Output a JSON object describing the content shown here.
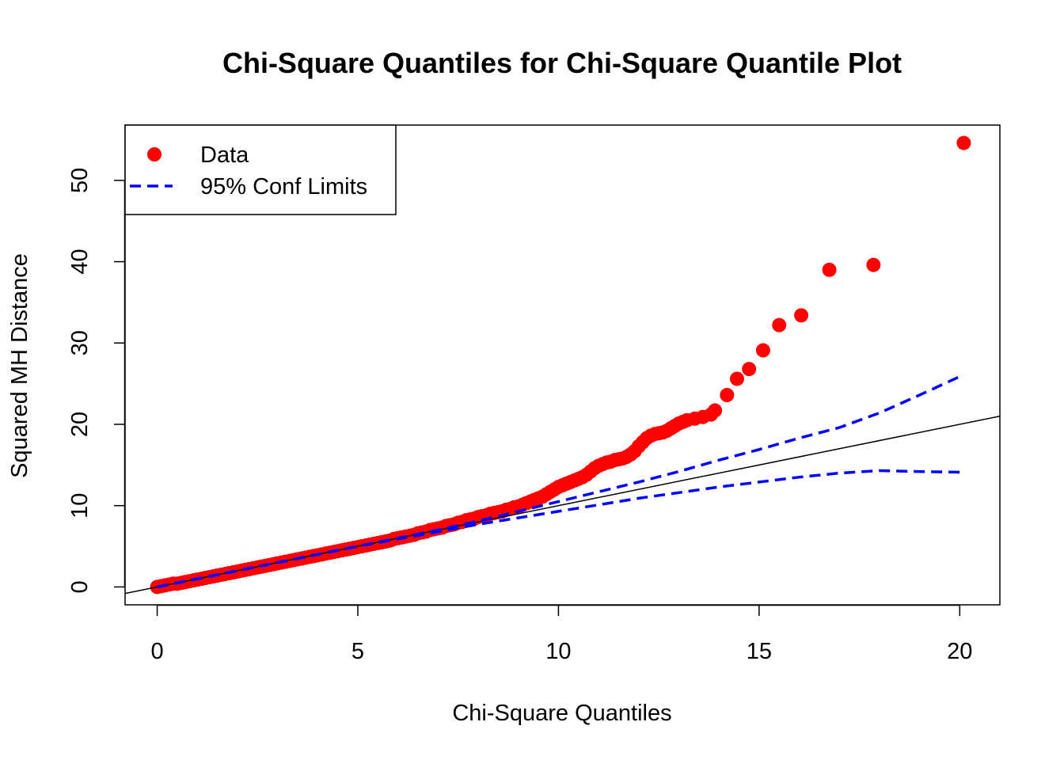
{
  "chart_data": {
    "type": "scatter",
    "title": "Chi-Square Quantiles for Chi-Square Quantile Plot",
    "xlabel": "Chi-Square Quantiles",
    "ylabel": "Squared MH Distance",
    "xlim": [
      -0.8,
      21
    ],
    "ylim": [
      -2.2,
      56.8
    ],
    "xticks": [
      0,
      5,
      10,
      15,
      20
    ],
    "yticks": [
      0,
      10,
      20,
      30,
      40,
      50
    ],
    "grid": false,
    "legend_position": "top-left",
    "legend": [
      {
        "label": "Data",
        "symbol": "point",
        "color": "#ff0000"
      },
      {
        "label": "95% Conf Limits",
        "symbol": "dashed-line",
        "color": "#0000ff"
      }
    ],
    "reference_line": {
      "slope": 1,
      "intercept": 0,
      "color": "#000000"
    },
    "series": [
      {
        "name": "Data",
        "kind": "points",
        "color": "#ff0000",
        "points": [
          [
            0.0,
            0.0
          ],
          [
            0.1,
            0.1
          ],
          [
            0.2,
            0.2
          ],
          [
            0.3,
            0.3
          ],
          [
            0.4,
            0.4
          ],
          [
            0.5,
            0.4
          ],
          [
            0.6,
            0.5
          ],
          [
            0.7,
            0.6
          ],
          [
            0.8,
            0.7
          ],
          [
            0.9,
            0.8
          ],
          [
            1.0,
            0.9
          ],
          [
            1.1,
            1.0
          ],
          [
            1.2,
            1.1
          ],
          [
            1.3,
            1.2
          ],
          [
            1.4,
            1.3
          ],
          [
            1.5,
            1.4
          ],
          [
            1.6,
            1.5
          ],
          [
            1.7,
            1.6
          ],
          [
            1.8,
            1.7
          ],
          [
            1.9,
            1.8
          ],
          [
            2.0,
            1.9
          ],
          [
            2.1,
            2.0
          ],
          [
            2.2,
            2.1
          ],
          [
            2.3,
            2.2
          ],
          [
            2.4,
            2.3
          ],
          [
            2.5,
            2.4
          ],
          [
            2.6,
            2.5
          ],
          [
            2.7,
            2.6
          ],
          [
            2.8,
            2.7
          ],
          [
            2.9,
            2.8
          ],
          [
            3.0,
            2.9
          ],
          [
            3.1,
            3.0
          ],
          [
            3.2,
            3.1
          ],
          [
            3.3,
            3.2
          ],
          [
            3.4,
            3.3
          ],
          [
            3.5,
            3.4
          ],
          [
            3.6,
            3.5
          ],
          [
            3.7,
            3.6
          ],
          [
            3.8,
            3.7
          ],
          [
            3.9,
            3.8
          ],
          [
            4.0,
            3.9
          ],
          [
            4.1,
            4.0
          ],
          [
            4.2,
            4.1
          ],
          [
            4.3,
            4.2
          ],
          [
            4.4,
            4.3
          ],
          [
            4.5,
            4.4
          ],
          [
            4.6,
            4.5
          ],
          [
            4.7,
            4.6
          ],
          [
            4.8,
            4.7
          ],
          [
            4.9,
            4.8
          ],
          [
            5.0,
            4.9
          ],
          [
            5.1,
            5.0
          ],
          [
            5.2,
            5.1
          ],
          [
            5.3,
            5.2
          ],
          [
            5.4,
            5.3
          ],
          [
            5.5,
            5.4
          ],
          [
            5.6,
            5.5
          ],
          [
            5.7,
            5.6
          ],
          [
            5.8,
            5.7
          ],
          [
            5.9,
            5.9
          ],
          [
            6.0,
            6.0
          ],
          [
            6.1,
            6.1
          ],
          [
            6.2,
            6.2
          ],
          [
            6.3,
            6.3
          ],
          [
            6.4,
            6.4
          ],
          [
            6.5,
            6.6
          ],
          [
            6.6,
            6.7
          ],
          [
            6.7,
            6.8
          ],
          [
            6.8,
            7.0
          ],
          [
            6.9,
            7.1
          ],
          [
            7.0,
            7.2
          ],
          [
            7.1,
            7.3
          ],
          [
            7.2,
            7.5
          ],
          [
            7.3,
            7.6
          ],
          [
            7.4,
            7.7
          ],
          [
            7.5,
            7.9
          ],
          [
            7.6,
            8.0
          ],
          [
            7.7,
            8.2
          ],
          [
            7.8,
            8.3
          ],
          [
            7.9,
            8.4
          ],
          [
            8.0,
            8.6
          ],
          [
            8.1,
            8.7
          ],
          [
            8.2,
            8.8
          ],
          [
            8.3,
            9.0
          ],
          [
            8.4,
            9.1
          ],
          [
            8.5,
            9.2
          ],
          [
            8.6,
            9.3
          ],
          [
            8.7,
            9.5
          ],
          [
            8.8,
            9.6
          ],
          [
            8.9,
            9.8
          ],
          [
            9.0,
            9.9
          ],
          [
            9.1,
            10.1
          ],
          [
            9.2,
            10.3
          ],
          [
            9.3,
            10.5
          ],
          [
            9.4,
            10.7
          ],
          [
            9.5,
            10.9
          ],
          [
            9.6,
            11.1
          ],
          [
            9.7,
            11.4
          ],
          [
            9.8,
            11.7
          ],
          [
            9.9,
            12.0
          ],
          [
            10.0,
            12.3
          ],
          [
            10.1,
            12.5
          ],
          [
            10.2,
            12.7
          ],
          [
            10.3,
            12.9
          ],
          [
            10.4,
            13.1
          ],
          [
            10.5,
            13.3
          ],
          [
            10.6,
            13.5
          ],
          [
            10.7,
            13.8
          ],
          [
            10.8,
            14.2
          ],
          [
            10.9,
            14.6
          ],
          [
            11.0,
            14.9
          ],
          [
            11.1,
            15.1
          ],
          [
            11.2,
            15.3
          ],
          [
            11.3,
            15.4
          ],
          [
            11.4,
            15.6
          ],
          [
            11.5,
            15.7
          ],
          [
            11.6,
            15.8
          ],
          [
            11.7,
            16.0
          ],
          [
            11.8,
            16.3
          ],
          [
            11.9,
            16.7
          ],
          [
            12.0,
            17.3
          ],
          [
            12.1,
            17.8
          ],
          [
            12.2,
            18.3
          ],
          [
            12.3,
            18.6
          ],
          [
            12.4,
            18.8
          ],
          [
            12.5,
            18.9
          ],
          [
            12.6,
            19.0
          ],
          [
            12.7,
            19.2
          ],
          [
            12.8,
            19.5
          ],
          [
            12.9,
            19.8
          ],
          [
            13.0,
            20.1
          ],
          [
            13.1,
            20.3
          ],
          [
            13.2,
            20.5
          ],
          [
            13.4,
            20.7
          ],
          [
            13.6,
            20.9
          ],
          [
            13.8,
            21.2
          ],
          [
            13.9,
            21.7
          ],
          [
            14.2,
            23.6
          ],
          [
            14.45,
            25.6
          ],
          [
            14.75,
            26.8
          ],
          [
            15.1,
            29.1
          ],
          [
            15.5,
            32.2
          ],
          [
            16.05,
            33.4
          ],
          [
            16.75,
            39.0
          ],
          [
            17.85,
            39.6
          ],
          [
            20.1,
            54.6
          ]
        ]
      },
      {
        "name": "95% Conf Limits",
        "kind": "upper-limit",
        "color": "#0000ff",
        "points": [
          [
            0,
            0
          ],
          [
            1,
            1.0
          ],
          [
            2,
            2.0
          ],
          [
            3,
            3.0
          ],
          [
            4,
            4.0
          ],
          [
            5,
            5.0
          ],
          [
            6,
            6.0
          ],
          [
            7,
            7.0
          ],
          [
            8,
            8.1
          ],
          [
            9,
            9.3
          ],
          [
            10,
            10.5
          ],
          [
            11,
            11.7
          ],
          [
            12,
            12.9
          ],
          [
            13,
            14.2
          ],
          [
            14,
            15.6
          ],
          [
            15,
            16.9
          ],
          [
            16,
            18.3
          ],
          [
            17,
            19.6
          ],
          [
            18,
            21.4
          ],
          [
            19,
            23.6
          ],
          [
            20.1,
            26.1
          ]
        ]
      },
      {
        "name": "95% Conf Limits",
        "kind": "lower-limit",
        "color": "#0000ff",
        "points": [
          [
            0,
            0
          ],
          [
            1,
            1.0
          ],
          [
            2,
            2.0
          ],
          [
            3,
            3.0
          ],
          [
            4,
            4.0
          ],
          [
            5,
            5.0
          ],
          [
            6,
            5.9
          ],
          [
            7,
            6.8
          ],
          [
            8,
            7.7
          ],
          [
            9,
            8.5
          ],
          [
            10,
            9.3
          ],
          [
            11,
            10.1
          ],
          [
            12,
            10.9
          ],
          [
            13,
            11.6
          ],
          [
            14,
            12.3
          ],
          [
            15,
            12.9
          ],
          [
            16,
            13.5
          ],
          [
            17,
            14.0
          ],
          [
            18,
            14.3
          ],
          [
            19,
            14.2
          ],
          [
            20.1,
            14.1
          ]
        ]
      }
    ]
  }
}
